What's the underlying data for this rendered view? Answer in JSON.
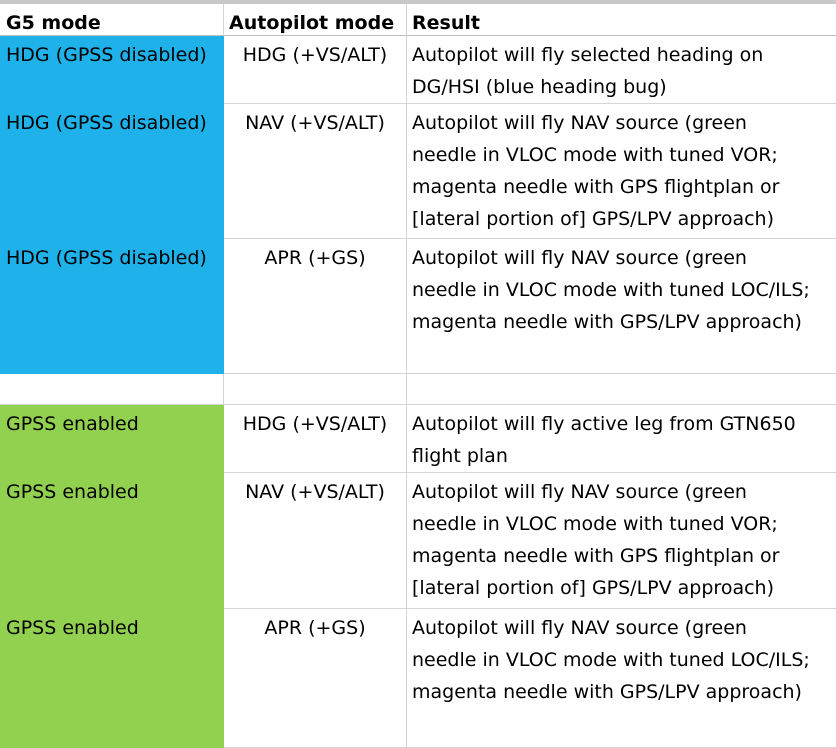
{
  "header": {
    "col1": "G5 mode",
    "col2": "Autopilot mode",
    "col3": "Result"
  },
  "colors": {
    "blue_fill": "#1eb1ea",
    "green_fill": "#92d050",
    "grid": "#d4d4d4"
  },
  "rows": [
    {
      "g5_mode": "HDG (GPSS disabled)",
      "autopilot_mode": "HDG (+VS/ALT)",
      "result": [
        "Autopilot will fly selected heading on",
        "DG/HSI (blue heading bug)"
      ]
    },
    {
      "g5_mode": "HDG (GPSS disabled)",
      "autopilot_mode": "NAV (+VS/ALT)",
      "result": [
        "Autopilot will fly NAV source (green",
        "needle in VLOC mode with tuned VOR;",
        "magenta needle with GPS flightplan or",
        "[lateral portion of] GPS/LPV approach)"
      ]
    },
    {
      "g5_mode": "HDG (GPSS disabled)",
      "autopilot_mode": "APR (+GS)",
      "result": [
        "Autopilot will fly NAV source (green",
        "needle in VLOC mode with tuned LOC/ILS;",
        "magenta needle with GPS/LPV approach)"
      ]
    },
    {
      "g5_mode": "",
      "autopilot_mode": "",
      "result": []
    },
    {
      "g5_mode": "GPSS enabled",
      "autopilot_mode": "HDG (+VS/ALT)",
      "result": [
        "Autopilot will fly active leg from GTN650",
        "flight plan"
      ]
    },
    {
      "g5_mode": "GPSS enabled",
      "autopilot_mode": "NAV (+VS/ALT)",
      "result": [
        "Autopilot will fly NAV source (green",
        "needle in VLOC mode with tuned VOR;",
        "magenta needle with GPS flightplan or",
        "[lateral portion of] GPS/LPV approach)"
      ]
    },
    {
      "g5_mode": "GPSS enabled",
      "autopilot_mode": "APR (+GS)",
      "result": [
        "Autopilot will fly NAV source (green",
        "needle in VLOC mode with tuned LOC/ILS;",
        "magenta needle with GPS/LPV approach)"
      ]
    }
  ]
}
